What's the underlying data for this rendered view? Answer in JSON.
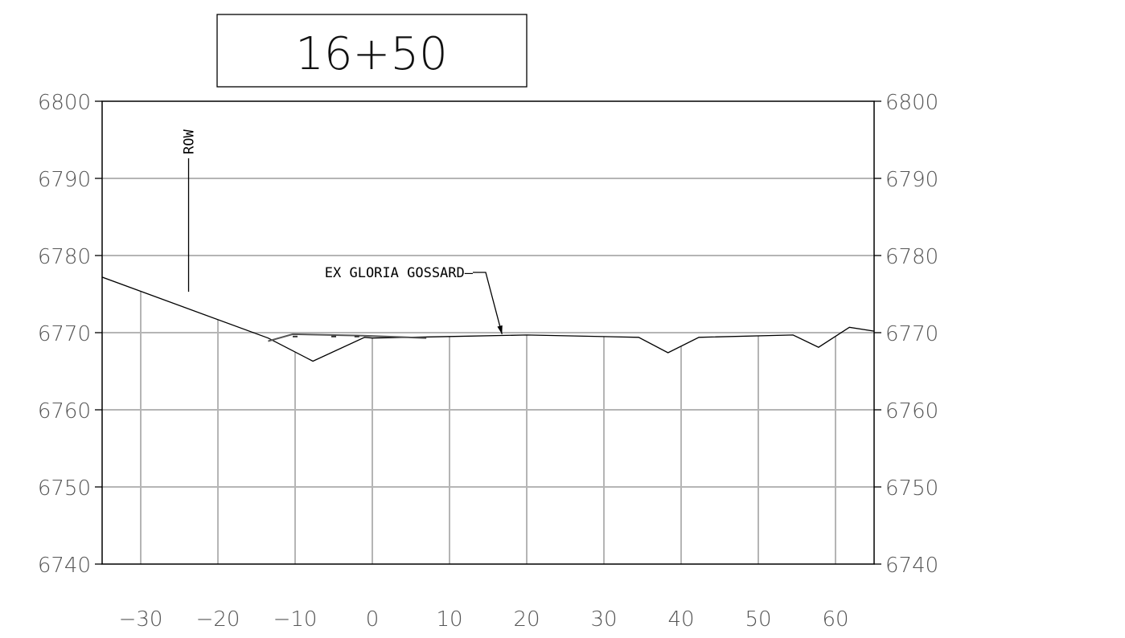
{
  "station": "16+50",
  "chart_data": {
    "type": "line",
    "title": "16+50",
    "xlim": [
      -35,
      65
    ],
    "ylim": [
      6740,
      6800
    ],
    "x_ticks": [
      -30,
      -20,
      -10,
      0,
      10,
      20,
      30,
      40,
      50,
      60
    ],
    "x_tick_labels": [
      "−30",
      "−20",
      "−10",
      "0",
      "10",
      "20",
      "30",
      "40",
      "50",
      "60"
    ],
    "y_ticks": [
      6740,
      6750,
      6760,
      6770,
      6780,
      6790,
      6800
    ],
    "y_tick_labels": [
      "6740",
      "6750",
      "6760",
      "6770",
      "6780",
      "6790",
      "6800"
    ],
    "grid": true,
    "series": [
      {
        "name": "EX GLORIA GOSSARD",
        "points": [
          [
            -35,
            6777.2
          ],
          [
            -13.5,
            6769.3
          ],
          [
            -7.7,
            6766.3
          ],
          [
            -1,
            6769.4
          ],
          [
            0,
            6769.3
          ],
          [
            10,
            6769.5
          ],
          [
            20,
            6769.7
          ],
          [
            34.5,
            6769.4
          ],
          [
            38.3,
            6767.4
          ],
          [
            42.3,
            6769.4
          ],
          [
            54.5,
            6769.7
          ],
          [
            57.8,
            6768.1
          ],
          [
            61.8,
            6770.7
          ],
          [
            65,
            6770.2
          ]
        ]
      },
      {
        "points": [
          [
            -13.5,
            6768.9
          ],
          [
            -10.3,
            6769.8
          ],
          [
            -1.2,
            6769.6
          ],
          [
            7,
            6769.3
          ]
        ]
      }
    ],
    "annotations": [
      {
        "text": "ROW",
        "x": -23.8,
        "y": 6775.3
      },
      {
        "text": "EX GLORIA GOSSARD",
        "x": 16.8,
        "y": 6769.7
      }
    ]
  }
}
